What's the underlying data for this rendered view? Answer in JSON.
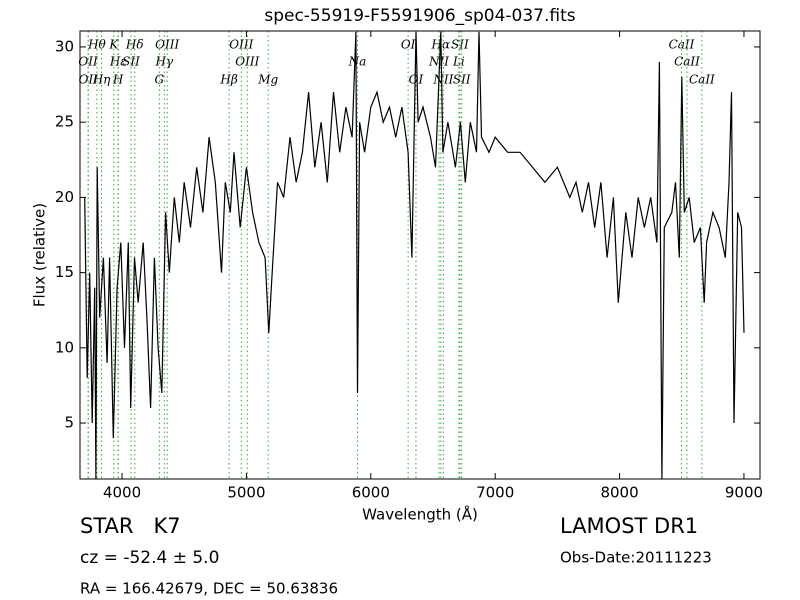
{
  "chart_data": {
    "type": "line",
    "title": "spec-55919-F5591906_sp04-037.fits",
    "xlabel": "Wavelength (Å)",
    "ylabel": "Flux (relative)",
    "xlim": [
      3662,
      9129
    ],
    "ylim": [
      1.28,
      31.06
    ],
    "xticks": [
      4000,
      5000,
      6000,
      7000,
      8000,
      9000
    ],
    "yticks": [
      5,
      10,
      15,
      20,
      25,
      30
    ],
    "color": "#000000",
    "line_color": "#33aa33",
    "x": [
      3700,
      3720,
      3740,
      3760,
      3780,
      3790,
      3800,
      3820,
      3850,
      3880,
      3900,
      3930,
      3960,
      3990,
      4020,
      4050,
      4070,
      4100,
      4130,
      4170,
      4200,
      4230,
      4260,
      4290,
      4320,
      4350,
      4380,
      4420,
      4460,
      4500,
      4550,
      4600,
      4650,
      4700,
      4750,
      4800,
      4830,
      4870,
      4900,
      4950,
      5000,
      5050,
      5100,
      5150,
      5180,
      5200,
      5250,
      5300,
      5350,
      5400,
      5450,
      5500,
      5550,
      5600,
      5650,
      5700,
      5750,
      5800,
      5850,
      5880,
      5893,
      5910,
      5950,
      6000,
      6050,
      6100,
      6150,
      6200,
      6250,
      6300,
      6330,
      6363,
      6380,
      6420,
      6480,
      6520,
      6563,
      6580,
      6620,
      6680,
      6720,
      6760,
      6800,
      6850,
      6870,
      6890,
      6950,
      7000,
      7100,
      7200,
      7300,
      7400,
      7500,
      7600,
      7650,
      7700,
      7750,
      7800,
      7850,
      7900,
      7950,
      7990,
      8050,
      8100,
      8150,
      8200,
      8250,
      8300,
      8320,
      8340,
      8360,
      8420,
      8450,
      8480,
      8500,
      8520,
      8560,
      8600,
      8650,
      8680,
      8700,
      8750,
      8800,
      8850,
      8880,
      8900,
      8920,
      8950,
      8980,
      9000
    ],
    "values": [
      20,
      8,
      15,
      5,
      14,
      1.3,
      22,
      12,
      16,
      9,
      16,
      4,
      14,
      17,
      10,
      17,
      6,
      16,
      13,
      17,
      12,
      6,
      16,
      10,
      7,
      19,
      15,
      20,
      17,
      21,
      18,
      22,
      19,
      24,
      21,
      15,
      21,
      19,
      23,
      18,
      22,
      19,
      17,
      16,
      11,
      14,
      21,
      20,
      24,
      21,
      23,
      27,
      22,
      25,
      21,
      27,
      23,
      26,
      24,
      31,
      7,
      25,
      23,
      26,
      27,
      25,
      26,
      24,
      26,
      23,
      16,
      31,
      25,
      26,
      24,
      22,
      31,
      23,
      25,
      22,
      25,
      21,
      25,
      23,
      31,
      24,
      23,
      24,
      23,
      23,
      22,
      21,
      22,
      20,
      21,
      19,
      21,
      18,
      21,
      16,
      20,
      13,
      19,
      16,
      20,
      18,
      20,
      17,
      29,
      1.3,
      18,
      19,
      21,
      16,
      28,
      19,
      20,
      17,
      18,
      13,
      17,
      19,
      18,
      16,
      21,
      27,
      5,
      19,
      18,
      11
    ],
    "annotations": [
      {
        "label": "Hθ",
        "x": 3798
      },
      {
        "label": "K",
        "x": 3934
      },
      {
        "label": "Hδ",
        "x": 4102
      },
      {
        "label": "OIII",
        "x": 4363
      },
      {
        "label": "OIII",
        "x": 4959
      },
      {
        "label": "OI",
        "x": 6300
      },
      {
        "label": "Hα",
        "x": 6563
      },
      {
        "label": "SII",
        "x": 6716
      },
      {
        "label": "CaII",
        "x": 8498
      },
      {
        "label": "OII",
        "x": 3727
      },
      {
        "label": "Hε",
        "x": 3970
      },
      {
        "label": "SII",
        "x": 4072
      },
      {
        "label": "Hγ",
        "x": 4340
      },
      {
        "label": "OIII",
        "x": 5007
      },
      {
        "label": "Na",
        "x": 5893
      },
      {
        "label": "NII",
        "x": 6548
      },
      {
        "label": "Li",
        "x": 6708
      },
      {
        "label": "CaII",
        "x": 8542
      },
      {
        "label": "OII",
        "x": 3729
      },
      {
        "label": "Hη",
        "x": 3835
      },
      {
        "label": "H",
        "x": 3968
      },
      {
        "label": "G",
        "x": 4300
      },
      {
        "label": "Hβ",
        "x": 4861
      },
      {
        "label": "Mg",
        "x": 5175
      },
      {
        "label": "OI",
        "x": 6363
      },
      {
        "label": "NII",
        "x": 6583
      },
      {
        "label": "SII",
        "x": 6731
      },
      {
        "label": "CaII",
        "x": 8662
      }
    ],
    "object": "STAR   K7",
    "redshift": "cz = -52.4 ± 5.0",
    "coords": "RA = 166.42679, DEC = 50.63836",
    "survey": "LAMOST DR1",
    "obs_date": "Obs-Date:20111223"
  }
}
